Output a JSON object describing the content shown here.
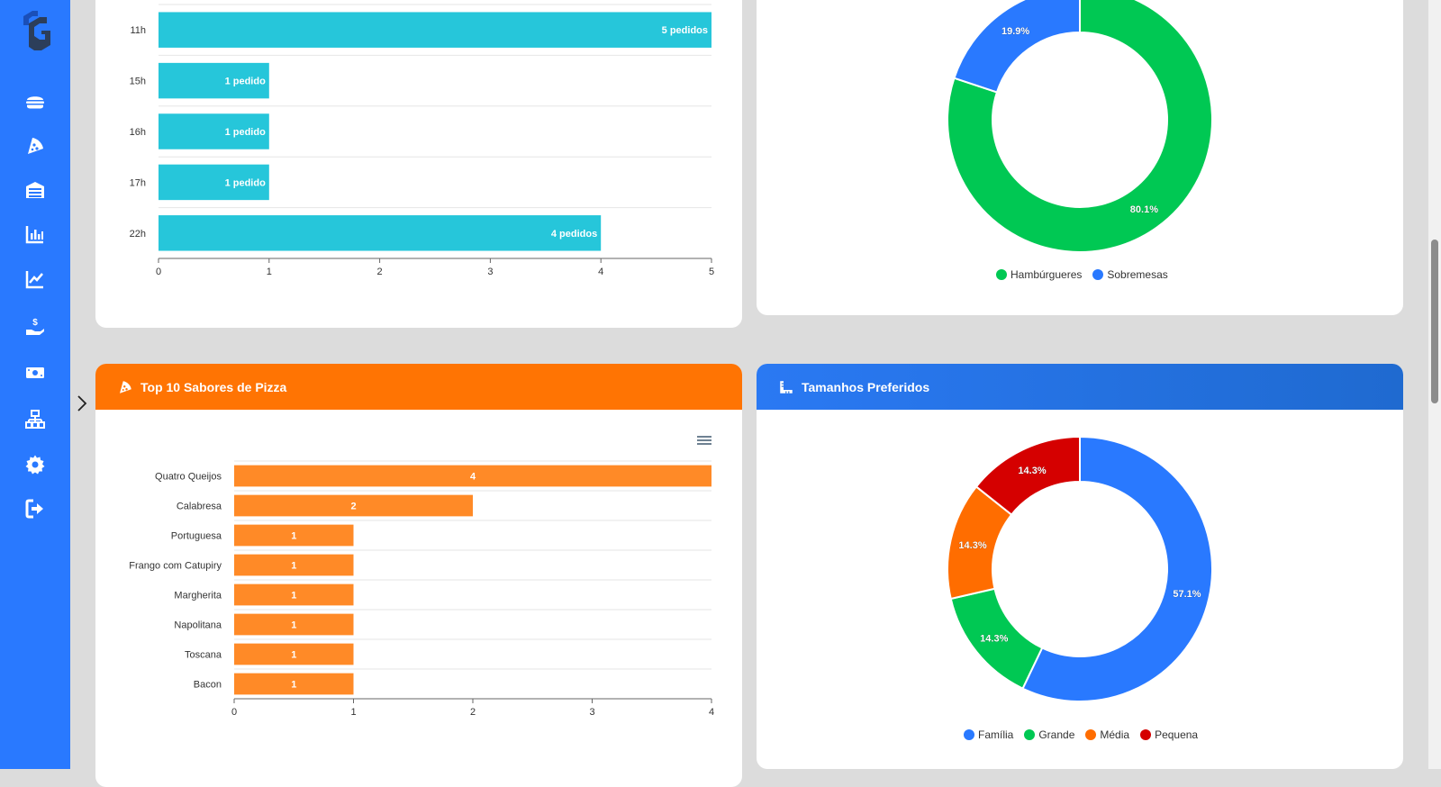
{
  "sidebar": {
    "logo_icon": "g-logo-icon",
    "items": [
      {
        "name": "hamburger-icon"
      },
      {
        "name": "pizza-icon"
      },
      {
        "name": "drawer-icon"
      },
      {
        "name": "bar-chart-icon"
      },
      {
        "name": "line-chart-icon"
      },
      {
        "name": "hand-money-icon"
      },
      {
        "name": "cash-icon"
      },
      {
        "name": "network-icon"
      },
      {
        "name": "gear-icon"
      },
      {
        "name": "logout-icon"
      }
    ]
  },
  "cards": {
    "pizza": {
      "title": "Top 10 Sabores de Pizza",
      "icon": "pizza-icon"
    },
    "sizes": {
      "title": "Tamanhos Preferidos",
      "icon": "ruler-icon"
    }
  },
  "chart_data": [
    {
      "type": "bar",
      "orientation": "horizontal",
      "title": "",
      "categories": [
        "11h",
        "15h",
        "16h",
        "17h",
        "22h"
      ],
      "values": [
        5,
        1,
        1,
        1,
        4
      ],
      "data_labels": [
        "5 pedidos",
        "1 pedido",
        "1 pedido",
        "1 pedido",
        "4 pedidos"
      ],
      "xlim": [
        0,
        5
      ],
      "xticks": [
        "0",
        "1",
        "2",
        "3",
        "4",
        "5"
      ],
      "color": "#26c6da"
    },
    {
      "type": "pie",
      "donut": true,
      "labels": [
        "Hambúrgueres",
        "Sobremesas"
      ],
      "values": [
        80.1,
        19.9
      ],
      "data_labels": [
        "80.1%",
        "19.9%"
      ],
      "colors": [
        "#00c853",
        "#2979ff"
      ],
      "legend": "bottom"
    },
    {
      "type": "bar",
      "orientation": "horizontal",
      "title": "Top 10 Sabores de Pizza",
      "categories": [
        "Quatro Queijos",
        "Calabresa",
        "Portuguesa",
        "Frango com Catupiry",
        "Margherita",
        "Napolitana",
        "Toscana",
        "Bacon"
      ],
      "values": [
        4,
        2,
        1,
        1,
        1,
        1,
        1,
        1
      ],
      "data_labels": [
        "4",
        "2",
        "1",
        "1",
        "1",
        "1",
        "1",
        "1"
      ],
      "xlim": [
        0,
        4
      ],
      "xticks": [
        "0",
        "1",
        "2",
        "3",
        "4"
      ],
      "color": "#ff8a27"
    },
    {
      "type": "pie",
      "donut": true,
      "title": "Tamanhos Preferidos",
      "labels": [
        "Família",
        "Grande",
        "Média",
        "Pequena"
      ],
      "values": [
        57.1,
        14.3,
        14.3,
        14.3
      ],
      "data_labels": [
        "57.1%",
        "14.3%",
        "14.3%",
        "14.3%"
      ],
      "colors": [
        "#2979ff",
        "#00c853",
        "#ff6d00",
        "#d50000"
      ],
      "legend": "bottom"
    }
  ]
}
